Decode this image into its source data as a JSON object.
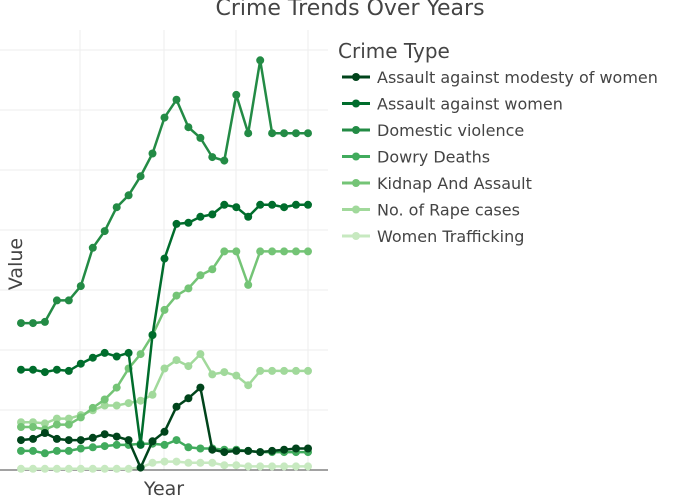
{
  "chart_data": {
    "type": "line",
    "title": "Crime Trends Over Years",
    "xlabel": "Year",
    "ylabel": "Value",
    "legend_title": "Crime Type",
    "legend_position": "right",
    "grid": true,
    "x_count": 25,
    "ylim": [
      0,
      36
    ],
    "series": [
      {
        "name": "Assault against modesty of women",
        "color": "#00441b",
        "values": [
          2.5,
          2.6,
          3.1,
          2.6,
          2.5,
          2.5,
          2.7,
          3.0,
          2.8,
          2.5,
          0.2,
          2.4,
          3.2,
          5.3,
          6.0,
          6.9,
          1.7,
          1.5,
          1.6,
          1.6,
          1.5,
          1.6,
          1.7,
          1.8,
          1.8
        ]
      },
      {
        "name": "Assault against women",
        "color": "#006d2c",
        "values": [
          8.4,
          8.4,
          8.2,
          8.4,
          8.3,
          8.9,
          9.4,
          9.8,
          9.5,
          9.8,
          2.1,
          11.3,
          17.7,
          20.6,
          20.7,
          21.2,
          21.4,
          22.2,
          22.0,
          21.2,
          22.2,
          22.2,
          22.0,
          22.2,
          22.2
        ]
      },
      {
        "name": "Domestic violence",
        "color": "#238b45",
        "values": [
          12.3,
          12.3,
          12.4,
          14.2,
          14.2,
          15.4,
          18.6,
          20.0,
          22.0,
          23.0,
          24.6,
          26.5,
          29.5,
          31.0,
          28.7,
          27.8,
          26.2,
          25.9,
          31.4,
          28.2,
          34.3,
          28.2,
          28.2,
          28.2,
          28.2
        ]
      },
      {
        "name": "Dowry Deaths",
        "color": "#41ab5d",
        "values": [
          1.6,
          1.6,
          1.4,
          1.6,
          1.6,
          1.8,
          1.9,
          2.0,
          2.1,
          2.1,
          2.2,
          2.2,
          2.1,
          2.5,
          1.9,
          1.8,
          1.8,
          1.7,
          1.7,
          1.6,
          1.5,
          1.5,
          1.5,
          1.5,
          1.5
        ]
      },
      {
        "name": "Kidnap And Assault",
        "color": "#74c476",
        "values": [
          3.6,
          3.6,
          3.4,
          3.8,
          3.8,
          4.4,
          5.2,
          5.9,
          6.9,
          8.5,
          9.7,
          11.3,
          13.4,
          14.6,
          15.2,
          16.3,
          16.8,
          18.3,
          18.3,
          15.5,
          18.3,
          18.3,
          18.3,
          18.3,
          18.3
        ]
      },
      {
        "name": "No. of Rape cases",
        "color": "#a1d99b",
        "values": [
          4.0,
          4.0,
          3.9,
          4.3,
          4.3,
          4.6,
          5.0,
          5.4,
          5.4,
          5.6,
          5.8,
          6.3,
          8.5,
          9.2,
          8.7,
          9.7,
          8.0,
          8.2,
          7.9,
          7.1,
          8.3,
          8.3,
          8.3,
          8.3,
          8.3
        ]
      },
      {
        "name": "Women Trafficking",
        "color": "#c7e9c0",
        "values": [
          0.1,
          0.1,
          0.1,
          0.1,
          0.1,
          0.1,
          0.1,
          0.1,
          0.1,
          0.1,
          0.2,
          0.6,
          0.7,
          0.7,
          0.6,
          0.6,
          0.6,
          0.4,
          0.4,
          0.3,
          0.3,
          0.3,
          0.3,
          0.3,
          0.3
        ]
      }
    ]
  }
}
